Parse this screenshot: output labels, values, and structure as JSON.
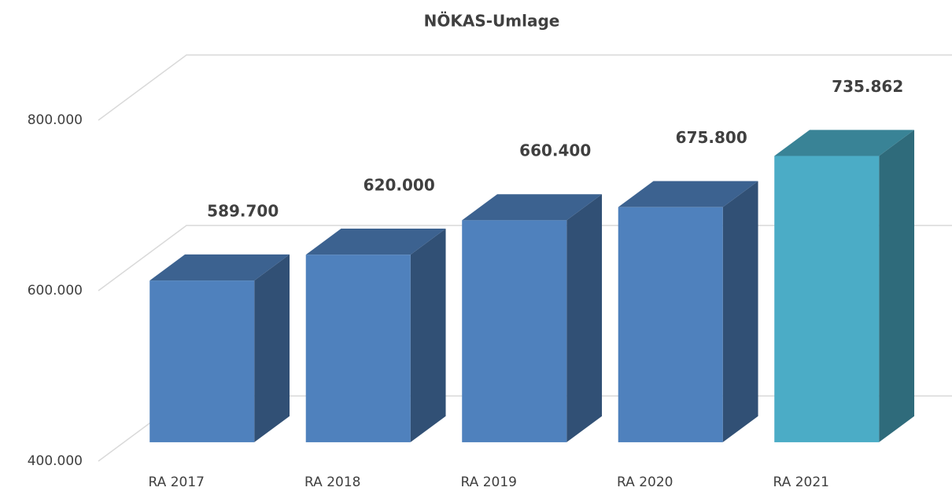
{
  "chart_data": {
    "type": "bar3d",
    "title": "NÖKAS-Umlage",
    "categories": [
      "RA 2017",
      "RA 2018",
      "RA 2019",
      "RA 2020",
      "RA 2021"
    ],
    "values": [
      589700,
      620000,
      660400,
      675800,
      735862
    ],
    "value_labels": [
      "589.700",
      "620.000",
      "660.400",
      "675.800",
      "735.862"
    ],
    "colors": [
      "#4f81bd",
      "#4f81bd",
      "#4f81bd",
      "#4f81bd",
      "#4bacc6"
    ],
    "ylim": [
      400000,
      800000
    ],
    "yticks": [
      {
        "value": 400000,
        "label": "400.000"
      },
      {
        "value": 600000,
        "label": "600.000"
      },
      {
        "value": 800000,
        "label": "800.000"
      }
    ],
    "grid": true
  }
}
